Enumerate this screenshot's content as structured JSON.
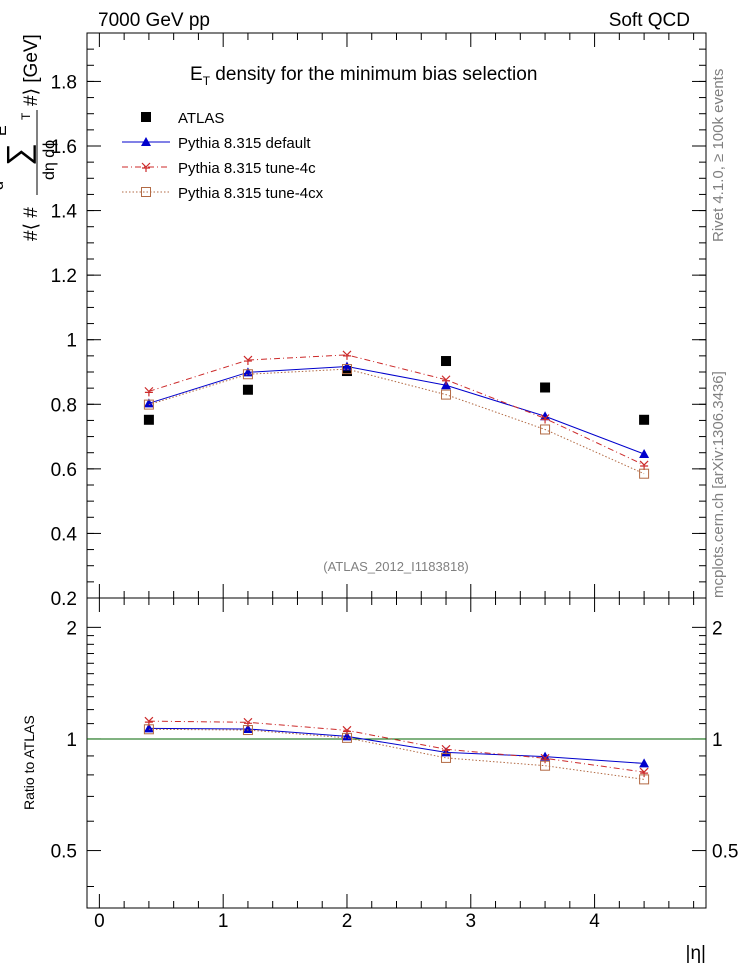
{
  "header": {
    "left": "7000 GeV pp",
    "right": "Soft QCD"
  },
  "side_labels": {
    "top": "Rivet 4.1.0, ≥ 100k events",
    "bottom": "mcplots.cern.ch [arXiv:1306.3436]"
  },
  "chart_data": [
    {
      "type": "scatter",
      "panel": "main",
      "title": "E_T density  for the minimum bias selection",
      "title_main": "E",
      "title_sub": "T",
      "title_rest": " density  for the minimum bias selection",
      "watermark": "(ATLAS_2012_I1183818)",
      "ylabel": "#langle #frac{d #sum E_T}{d#eta d#phi} #rangle [GeV]",
      "ylabel_parts": {
        "a": "#⟨ #",
        "num_d": "d",
        "sum": "∑",
        "E": "E",
        "T": "T",
        "b": "#⟩ [GeV]",
        "den": "dη dϕ"
      },
      "xlabel": "",
      "xlim": [
        -0.1,
        4.9
      ],
      "ylim": [
        0.2,
        1.95
      ],
      "yticks": [
        0.2,
        0.4,
        0.6,
        0.8,
        1.0,
        1.2,
        1.4,
        1.6,
        1.8
      ],
      "ytick_labels": [
        "0.2",
        "0.4",
        "0.6",
        "0.8",
        "1",
        "1.2",
        "1.4",
        "1.6",
        "1.8"
      ],
      "x": [
        0.4,
        1.2,
        2.0,
        2.8,
        3.6,
        4.4
      ],
      "legend_position": "top-left",
      "series": [
        {
          "name": "ATLAS",
          "values": [
            0.752,
            0.845,
            0.903,
            0.934,
            0.852,
            0.752
          ],
          "color": "#000000",
          "marker": "square-filled",
          "line": "none"
        },
        {
          "name": "Pythia 8.315 default",
          "values": [
            0.803,
            0.899,
            0.917,
            0.859,
            0.763,
            0.646
          ],
          "color": "#0000cc",
          "marker": "triangle-filled",
          "line": "solid"
        },
        {
          "name": "Pythia 8.315 tune-4c",
          "values": [
            0.84,
            0.937,
            0.953,
            0.876,
            0.756,
            0.612
          ],
          "color": "#cc2a2a",
          "marker": "star",
          "line": "dashdot"
        },
        {
          "name": "Pythia 8.315 tune-4cx",
          "values": [
            0.799,
            0.893,
            0.909,
            0.83,
            0.722,
            0.585
          ],
          "color": "#b26a44",
          "marker": "square-open",
          "line": "dotted"
        }
      ]
    },
    {
      "type": "scatter",
      "panel": "ratio",
      "ylabel": "Ratio to ATLAS",
      "xlabel": "|η|",
      "xlim": [
        -0.1,
        4.9
      ],
      "ylim": [
        0.35,
        2.4
      ],
      "yscale": "log",
      "yticks": [
        0.5,
        1,
        2
      ],
      "ytick_labels": [
        "0.5",
        "1",
        "2"
      ],
      "xticks": [
        0,
        1,
        2,
        3,
        4
      ],
      "xtick_labels": [
        "0",
        "1",
        "2",
        "3",
        "4"
      ],
      "reference_line": 1.0,
      "reference_color": "#006600",
      "x": [
        0.4,
        1.2,
        2.0,
        2.8,
        3.6,
        4.4
      ],
      "series": [
        {
          "name": "Pythia 8.315 default",
          "values": [
            1.068,
            1.064,
            1.016,
            0.92,
            0.896,
            0.859
          ],
          "color": "#0000cc",
          "marker": "triangle-filled",
          "line": "solid"
        },
        {
          "name": "Pythia 8.315 tune-4c",
          "values": [
            1.117,
            1.109,
            1.055,
            0.938,
            0.887,
            0.814
          ],
          "color": "#cc2a2a",
          "marker": "star",
          "line": "dashdot"
        },
        {
          "name": "Pythia 8.315 tune-4cx",
          "values": [
            1.062,
            1.057,
            1.007,
            0.889,
            0.847,
            0.778
          ],
          "color": "#b26a44",
          "marker": "square-open",
          "line": "dotted"
        }
      ]
    }
  ]
}
